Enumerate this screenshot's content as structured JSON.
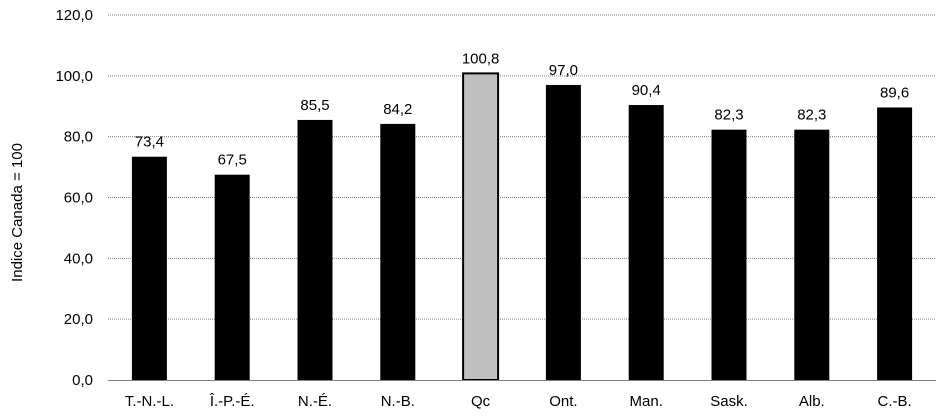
{
  "chart_data": {
    "type": "bar",
    "ylabel": "Indice  Canada = 100",
    "ylim": [
      0,
      120
    ],
    "yticks": [
      "0,0",
      "20,0",
      "40,0",
      "60,0",
      "80,0",
      "100,0",
      "120,0"
    ],
    "grid": true,
    "categories": [
      "T.-N.-L.",
      "Î.-P.-É.",
      "N.-É.",
      "N.-B.",
      "Qc",
      "Ont.",
      "Man.",
      "Sask.",
      "Alb.",
      "C.-B."
    ],
    "values": [
      73.4,
      67.5,
      85.5,
      84.2,
      100.8,
      97.0,
      90.4,
      82.3,
      82.3,
      89.6
    ],
    "value_labels": [
      "73,4",
      "67,5",
      "85,5",
      "84,2",
      "100,8",
      "97,0",
      "90,4",
      "82,3",
      "82,3",
      "89,6"
    ],
    "highlight_category": "Qc",
    "colors": {
      "bar": "#000000",
      "highlight": "#c0c0c0",
      "grid": "#808080"
    }
  }
}
